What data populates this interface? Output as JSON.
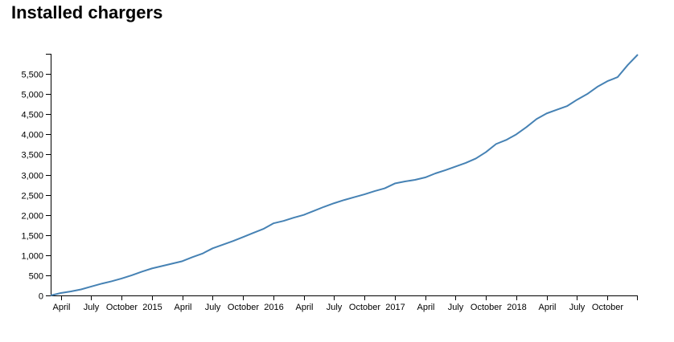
{
  "chart_data": {
    "type": "line",
    "title": "Installed chargers",
    "x": [
      "2014-03",
      "2014-04",
      "2014-05",
      "2014-06",
      "2014-07",
      "2014-08",
      "2014-09",
      "2014-10",
      "2014-11",
      "2014-12",
      "2015-01",
      "2015-02",
      "2015-03",
      "2015-04",
      "2015-05",
      "2015-06",
      "2015-07",
      "2015-08",
      "2015-09",
      "2015-10",
      "2015-11",
      "2015-12",
      "2016-01",
      "2016-02",
      "2016-03",
      "2016-04",
      "2016-05",
      "2016-06",
      "2016-07",
      "2016-08",
      "2016-09",
      "2016-10",
      "2016-11",
      "2016-12",
      "2017-01",
      "2017-02",
      "2017-03",
      "2017-04",
      "2017-05",
      "2017-06",
      "2017-07",
      "2017-08",
      "2017-09",
      "2017-10",
      "2017-11",
      "2017-12",
      "2018-01",
      "2018-02",
      "2018-03",
      "2018-04",
      "2018-05",
      "2018-06",
      "2018-07",
      "2018-08",
      "2018-09",
      "2018-10",
      "2018-11",
      "2018-12",
      "2019-01"
    ],
    "series": [
      {
        "name": "Installed chargers",
        "color": "#4682b4",
        "values": [
          0,
          60,
          100,
          150,
          220,
          290,
          350,
          420,
          500,
          590,
          670,
          730,
          790,
          850,
          950,
          1040,
          1170,
          1260,
          1350,
          1450,
          1550,
          1650,
          1790,
          1850,
          1930,
          2000,
          2100,
          2200,
          2290,
          2370,
          2440,
          2510,
          2590,
          2660,
          2780,
          2830,
          2870,
          2930,
          3030,
          3110,
          3200,
          3290,
          3400,
          3560,
          3760,
          3860,
          4000,
          4180,
          4380,
          4520,
          4610,
          4700,
          4860,
          5000,
          5180,
          5320,
          5420,
          5720,
          5980
        ]
      }
    ],
    "xlim": [
      "2014-03",
      "2019-01"
    ],
    "xticks": [
      {
        "value": "2014-04",
        "label": "April"
      },
      {
        "value": "2014-07",
        "label": "July"
      },
      {
        "value": "2014-10",
        "label": "October"
      },
      {
        "value": "2015-01",
        "label": "2015"
      },
      {
        "value": "2015-04",
        "label": "April"
      },
      {
        "value": "2015-07",
        "label": "July"
      },
      {
        "value": "2015-10",
        "label": "October"
      },
      {
        "value": "2016-01",
        "label": "2016"
      },
      {
        "value": "2016-04",
        "label": "April"
      },
      {
        "value": "2016-07",
        "label": "July"
      },
      {
        "value": "2016-10",
        "label": "October"
      },
      {
        "value": "2017-01",
        "label": "2017"
      },
      {
        "value": "2017-04",
        "label": "April"
      },
      {
        "value": "2017-07",
        "label": "July"
      },
      {
        "value": "2017-10",
        "label": "October"
      },
      {
        "value": "2018-01",
        "label": "2018"
      },
      {
        "value": "2018-04",
        "label": "April"
      },
      {
        "value": "2018-07",
        "label": "July"
      },
      {
        "value": "2018-10",
        "label": "October"
      }
    ],
    "ylim": [
      0,
      6000
    ],
    "yticks": [
      0,
      500,
      {
        "value": 1000,
        "label": "1,000"
      },
      {
        "value": 1500,
        "label": "1,500"
      },
      {
        "value": 2000,
        "label": "2,000"
      },
      {
        "value": 2500,
        "label": "2,500"
      },
      {
        "value": 3000,
        "label": "3,000"
      },
      {
        "value": 3500,
        "label": "3,500"
      },
      {
        "value": 4000,
        "label": "4,000"
      },
      {
        "value": 4500,
        "label": "4,500"
      },
      {
        "value": 5000,
        "label": "5,000"
      },
      {
        "value": 5500,
        "label": "5,500"
      }
    ],
    "grid": false
  }
}
